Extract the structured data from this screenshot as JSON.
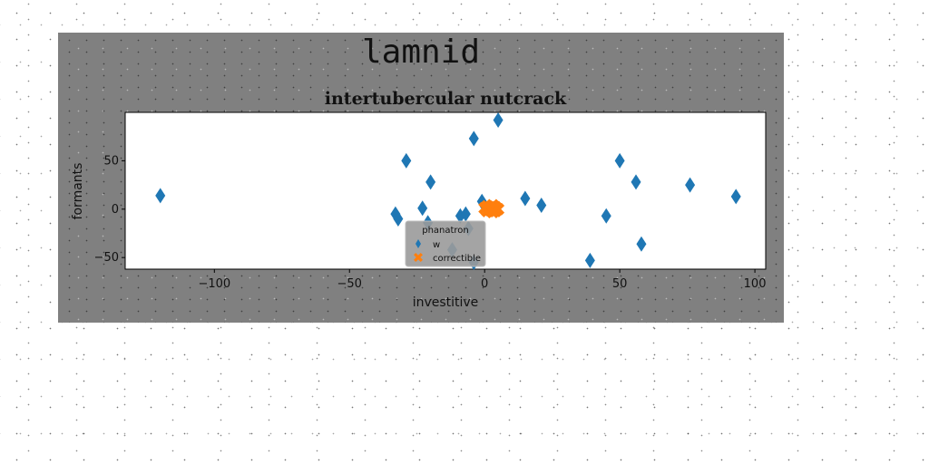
{
  "figure": {
    "suptitle": "lamnid"
  },
  "chart_data": {
    "type": "scatter",
    "title": "intertubercular nutcrack",
    "xlabel": "investitive",
    "ylabel": "formants",
    "xlim": [
      -133,
      104
    ],
    "ylim": [
      -62,
      100
    ],
    "xticks": [
      -100,
      -50,
      0,
      50,
      100
    ],
    "yticks": [
      -50,
      0,
      50
    ],
    "grid": false,
    "legend": {
      "title": "phanatron",
      "placement": "lower-center"
    },
    "series": [
      {
        "name": "w",
        "marker": "diamond",
        "color": "#1f77b4",
        "points": [
          [
            -120,
            14
          ],
          [
            -33,
            -5
          ],
          [
            -32,
            -10
          ],
          [
            -29,
            50
          ],
          [
            -23,
            1
          ],
          [
            -21,
            -14
          ],
          [
            -20,
            28
          ],
          [
            -12,
            -42
          ],
          [
            -9,
            -7
          ],
          [
            -7,
            -5
          ],
          [
            -6,
            -20
          ],
          [
            -4,
            73
          ],
          [
            -4,
            -55
          ],
          [
            -1,
            8
          ],
          [
            0,
            3
          ],
          [
            5,
            92
          ],
          [
            15,
            11
          ],
          [
            21,
            4
          ],
          [
            39,
            -53
          ],
          [
            45,
            -7
          ],
          [
            50,
            50
          ],
          [
            56,
            28
          ],
          [
            58,
            -36
          ],
          [
            76,
            25
          ],
          [
            93,
            13
          ]
        ]
      },
      {
        "name": "correctible",
        "marker": "x",
        "color": "#ff7f0e",
        "points": [
          [
            0,
            1
          ],
          [
            1,
            3
          ],
          [
            2,
            -1
          ],
          [
            2,
            2
          ],
          [
            3,
            4
          ],
          [
            3,
            0
          ],
          [
            4,
            -2
          ],
          [
            4,
            2
          ],
          [
            5,
            0
          ],
          [
            1,
            -2
          ],
          [
            2,
            1
          ],
          [
            3,
            -3
          ]
        ]
      }
    ]
  }
}
